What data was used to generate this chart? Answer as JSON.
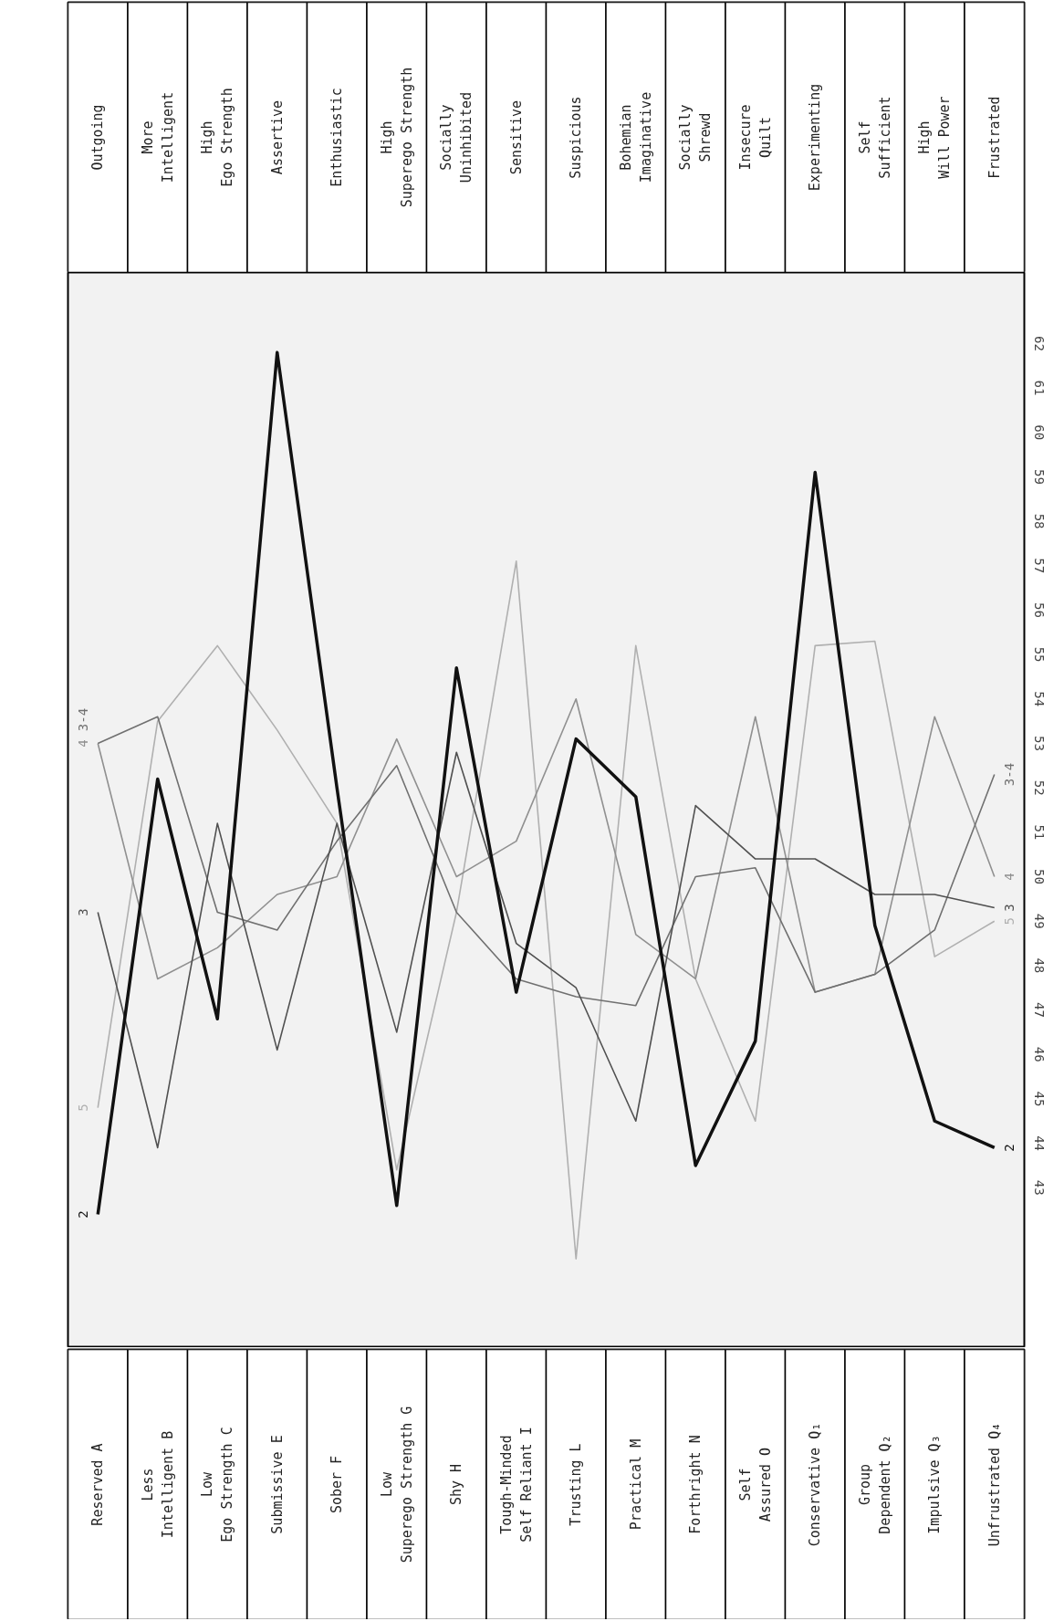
{
  "chart_data": {
    "type": "line",
    "categories": [
      "Reserved A",
      "Less\nIntelligent B",
      "Low\nEgo Strength C",
      "Submissive E",
      "Sober F",
      "Low\nSuperego Strength G",
      "Shy H",
      "Tough-Minded\nSelf Reliant I",
      "Trusting L",
      "Practical M",
      "Forthright N",
      "Self\nAssured O",
      "Conservative Q₁",
      "Group\nDependent Q₂",
      "Impulsive Q₃",
      "Unfrustrated Q₄"
    ],
    "annotations": [
      "Outgoing",
      "More\nIntelligent",
      "High\nEgo Strength",
      "Assertive",
      "Enthusiastic",
      "High\nSuperego Strength",
      "Socially\nUninhibited",
      "Sensitive",
      "Suspicious",
      "Bohemian\nImaginative",
      "Socially\nShrewd",
      "Insecure\nQuilt",
      "Experimenting",
      "Self\nSufficient",
      "High\nWill Power",
      "Frustrated"
    ],
    "series": [
      {
        "name": "5",
        "color": "#b0b0b0",
        "values": [
          44.8,
          53.5,
          55.2,
          53.3,
          51.2,
          43.4,
          49.2,
          57.1,
          41.4,
          55.2,
          47.7,
          44.5,
          55.2,
          55.3,
          48.2,
          49.0
        ]
      },
      {
        "name": "4",
        "color": "#909090",
        "values": [
          53.0,
          47.7,
          48.4,
          49.6,
          50.0,
          53.1,
          50.0,
          50.8,
          54.0,
          48.7,
          47.7,
          53.6,
          47.4,
          47.8,
          53.6,
          50.0
        ]
      },
      {
        "name": "3-4",
        "color": "#707070",
        "values": [
          53.0,
          53.6,
          49.2,
          48.8,
          50.8,
          52.5,
          49.2,
          47.7,
          47.3,
          47.1,
          50.0,
          50.2,
          47.4,
          47.8,
          48.8,
          52.3
        ]
      },
      {
        "name": "3",
        "color": "#505050",
        "values": [
          49.2,
          43.9,
          51.2,
          46.1,
          51.2,
          46.5,
          52.8,
          48.5,
          47.5,
          44.5,
          51.6,
          50.4,
          50.4,
          49.6,
          49.6,
          49.3
        ]
      },
      {
        "name": "2",
        "color": "#111111",
        "values": [
          42.4,
          52.2,
          46.8,
          61.8,
          52.0,
          42.6,
          54.7,
          47.4,
          53.1,
          51.8,
          43.5,
          46.3,
          59.1,
          48.9,
          44.5,
          43.9
        ]
      }
    ],
    "ylim": [
      39.4,
      63.6
    ],
    "yticks": [
      43,
      44,
      45,
      46,
      47,
      48,
      49,
      50,
      51,
      52,
      53,
      54,
      55,
      56,
      57,
      58,
      59,
      60,
      61,
      62
    ],
    "grid": false,
    "marker": "none",
    "line_style": "solid"
  }
}
